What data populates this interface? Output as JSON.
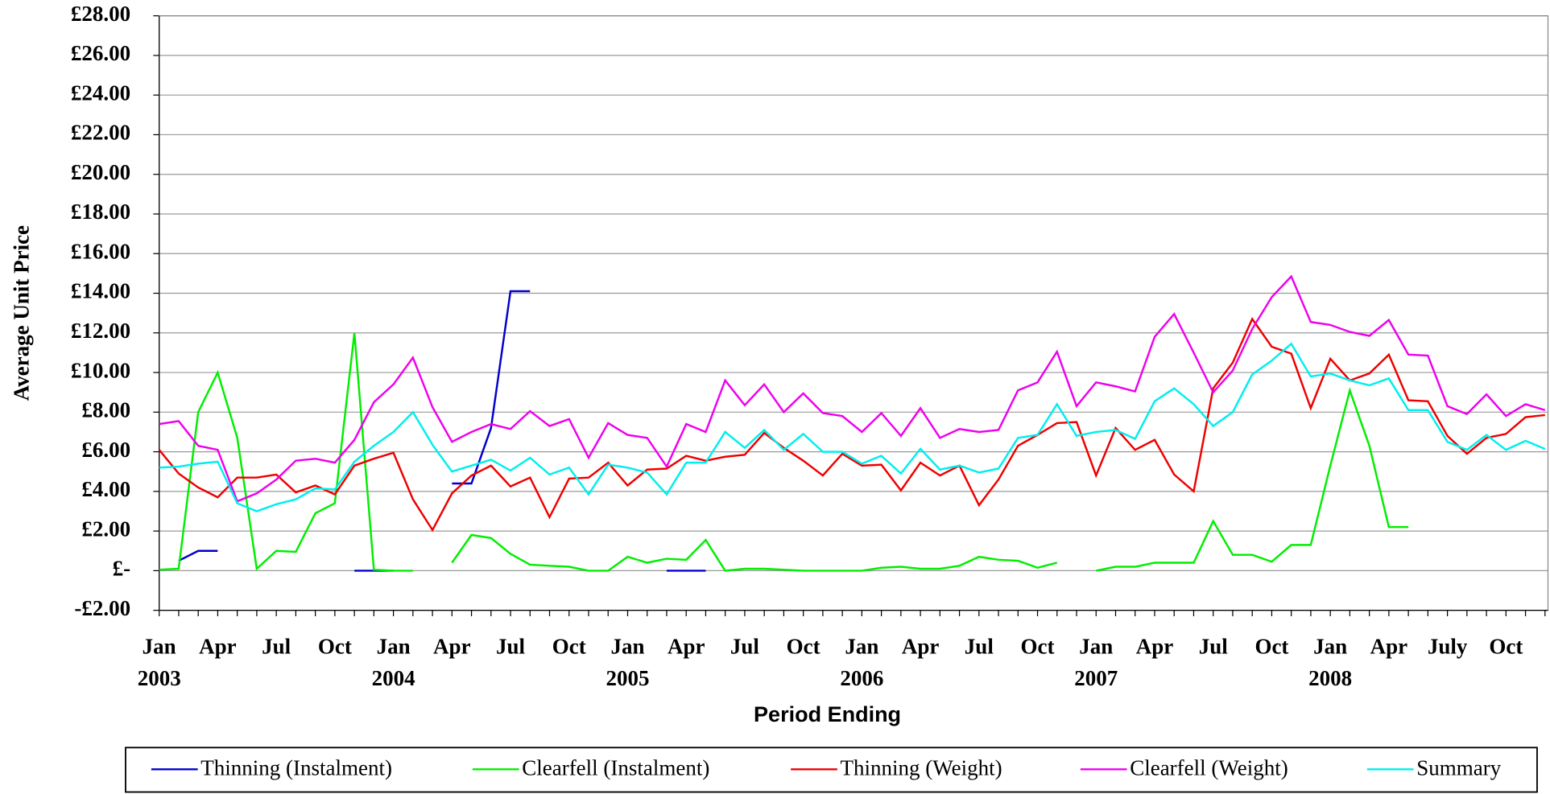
{
  "chart_data": {
    "type": "line",
    "y_label": "Average Unit Price",
    "x_label": "Period Ending",
    "categories": [
      "Jan 2003",
      null,
      null,
      "Apr",
      null,
      null,
      "Jul",
      null,
      null,
      "Oct",
      null,
      null,
      "Jan 2004",
      null,
      null,
      "Apr",
      null,
      null,
      "Jul",
      null,
      null,
      "Oct",
      null,
      null,
      "Jan 2005",
      null,
      null,
      "Apr",
      null,
      null,
      "Jul",
      null,
      null,
      "Oct",
      null,
      null,
      "Jan 2006",
      null,
      null,
      "Apr",
      null,
      null,
      "Jul",
      null,
      null,
      "Oct",
      null,
      null,
      "Jan 2007",
      null,
      null,
      "Apr",
      null,
      null,
      "Jul",
      null,
      null,
      "Oct",
      null,
      null,
      "Jan 2008",
      null,
      null,
      "Apr",
      null,
      null,
      "July",
      null,
      null,
      "Oct",
      null,
      null
    ],
    "ylim": [
      -2,
      28
    ],
    "yticks": [
      {
        "value": -2,
        "label": "-£2.00"
      },
      {
        "value": 0,
        "label": "£-"
      },
      {
        "value": 2,
        "label": "£2.00"
      },
      {
        "value": 4,
        "label": "£4.00"
      },
      {
        "value": 6,
        "label": "£6.00"
      },
      {
        "value": 8,
        "label": "£8.00"
      },
      {
        "value": 10,
        "label": "£10.00"
      },
      {
        "value": 12,
        "label": "£12.00"
      },
      {
        "value": 14,
        "label": "£14.00"
      },
      {
        "value": 16,
        "label": "£16.00"
      },
      {
        "value": 18,
        "label": "£18.00"
      },
      {
        "value": 20,
        "label": "£20.00"
      },
      {
        "value": 22,
        "label": "£22.00"
      },
      {
        "value": 24,
        "label": "£24.00"
      },
      {
        "value": 26,
        "label": "£26.00"
      },
      {
        "value": 28,
        "label": "£28.00"
      }
    ],
    "grid": true,
    "legend": "bottom",
    "series": [
      {
        "name": "Thinning (Instalment)",
        "color": "#0000cc",
        "values": [
          null,
          0.5,
          1.0,
          1.0,
          null,
          null,
          null,
          null,
          null,
          null,
          0,
          0,
          0,
          null,
          null,
          4.4,
          4.4,
          7.2,
          14.1,
          14.1,
          null,
          null,
          null,
          null,
          null,
          null,
          0,
          0,
          0,
          null,
          null,
          null,
          null,
          null,
          null,
          null,
          null,
          null,
          null,
          null,
          null,
          null,
          null,
          null,
          null,
          null,
          null,
          null,
          null,
          null,
          null,
          null,
          null,
          null,
          null,
          null,
          null,
          null,
          null,
          null,
          null,
          null,
          null,
          null,
          null,
          null,
          null,
          null,
          null,
          null,
          null,
          null
        ]
      },
      {
        "name": "Clearfell (Instalment)",
        "color": "#00ee00",
        "values": [
          0.05,
          0.1,
          8.0,
          10.0,
          6.7,
          0.1,
          1.0,
          0.95,
          2.9,
          3.4,
          12.0,
          0.05,
          0,
          0,
          null,
          0.4,
          1.8,
          1.65,
          0.85,
          0.3,
          0.25,
          0.2,
          0,
          0,
          0.7,
          0.4,
          0.6,
          0.55,
          1.55,
          0,
          0.1,
          0.1,
          0.05,
          0,
          0,
          0,
          0,
          0.15,
          0.2,
          0.1,
          0.1,
          0.25,
          0.7,
          0.55,
          0.5,
          0.15,
          0.4,
          null,
          0,
          0.2,
          0.2,
          0.4,
          0.4,
          0.4,
          2.5,
          0.8,
          0.8,
          0.45,
          1.3,
          1.3,
          5.3,
          9.1,
          6.3,
          2.2,
          2.2,
          null,
          null,
          null,
          null,
          null,
          null,
          null
        ]
      },
      {
        "name": "Thinning (Weight)",
        "color": "#ee0000",
        "values": [
          6.1,
          4.9,
          4.2,
          3.7,
          4.7,
          4.7,
          4.85,
          3.95,
          4.3,
          3.85,
          5.3,
          5.65,
          5.95,
          3.6,
          2.05,
          3.9,
          4.8,
          5.3,
          4.25,
          4.7,
          2.7,
          4.65,
          4.7,
          5.45,
          4.3,
          5.1,
          5.15,
          5.8,
          5.55,
          5.75,
          5.85,
          6.95,
          6.2,
          5.55,
          4.8,
          5.9,
          5.3,
          5.35,
          4.05,
          5.45,
          4.8,
          5.3,
          3.3,
          4.6,
          6.3,
          6.85,
          7.45,
          7.5,
          4.8,
          7.2,
          6.1,
          6.6,
          4.85,
          4.0,
          9.2,
          10.5,
          12.7,
          11.3,
          10.95,
          8.2,
          10.7,
          9.6,
          9.95,
          10.9,
          8.6,
          8.55,
          6.8,
          5.9,
          6.7,
          6.9,
          7.75,
          7.85
        ]
      },
      {
        "name": "Clearfell (Weight)",
        "color": "#ee00ee",
        "values": [
          7.4,
          7.55,
          6.3,
          6.1,
          3.5,
          3.9,
          4.6,
          5.55,
          5.65,
          5.45,
          6.6,
          8.5,
          9.4,
          10.75,
          8.25,
          6.5,
          7.0,
          7.4,
          7.15,
          8.05,
          7.3,
          7.65,
          5.7,
          7.45,
          6.85,
          6.7,
          5.25,
          7.4,
          7.0,
          9.6,
          8.35,
          9.4,
          8.0,
          8.95,
          7.95,
          7.8,
          7.0,
          7.95,
          6.8,
          8.2,
          6.7,
          7.15,
          7.0,
          7.1,
          9.1,
          9.5,
          11.05,
          8.3,
          9.5,
          9.3,
          9.05,
          11.8,
          12.95,
          11.0,
          9.0,
          10.1,
          12.2,
          13.8,
          14.85,
          12.55,
          12.4,
          12.05,
          11.85,
          12.65,
          10.9,
          10.85,
          8.3,
          7.9,
          8.9,
          7.8,
          8.4,
          8.1
        ]
      },
      {
        "name": "Summary",
        "color": "#00eeee",
        "values": [
          5.2,
          5.25,
          5.4,
          5.5,
          3.4,
          3.0,
          3.35,
          3.6,
          4.15,
          4.1,
          5.5,
          6.3,
          7.0,
          8.0,
          6.35,
          5.0,
          5.3,
          5.6,
          5.05,
          5.7,
          4.85,
          5.2,
          3.85,
          5.35,
          5.2,
          4.95,
          3.85,
          5.45,
          5.45,
          7.0,
          6.2,
          7.1,
          6.1,
          6.9,
          6.0,
          6.0,
          5.4,
          5.8,
          4.9,
          6.15,
          5.1,
          5.3,
          4.95,
          5.15,
          6.7,
          6.85,
          8.4,
          6.8,
          7.0,
          7.1,
          6.65,
          8.55,
          9.2,
          8.4,
          7.3,
          8.0,
          9.9,
          10.6,
          11.45,
          9.8,
          9.95,
          9.6,
          9.35,
          9.7,
          8.1,
          8.1,
          6.5,
          6.1,
          6.85,
          6.1,
          6.55,
          6.15
        ]
      }
    ]
  }
}
